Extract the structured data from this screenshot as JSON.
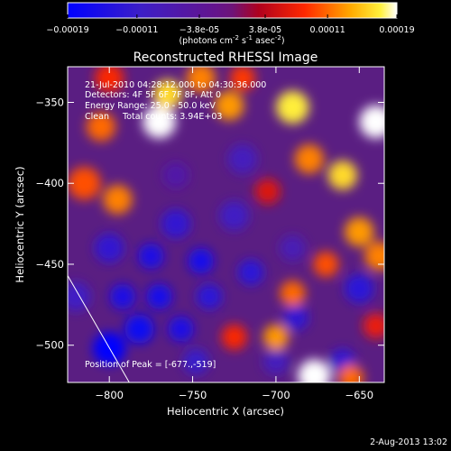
{
  "colorbar": {
    "tick_labels": [
      "-0.00019",
      "-0.00011",
      "-3.8e-05",
      "3.8e-05",
      "0.00011",
      "0.00019"
    ],
    "units_prefix": "(photons cm",
    "units_exp1": "-2",
    "units_mid": " s",
    "units_exp2": "-1",
    "units_mid2": " asec",
    "units_exp3": "-2",
    "units_suffix": ")"
  },
  "chart_data": {
    "type": "heatmap",
    "title": "Reconstructed RHESSI Image",
    "xlabel": "Heliocentric X (arcsec)",
    "ylabel": "Heliocentric Y (arcsec)",
    "xlim": [
      -825,
      -635
    ],
    "ylim": [
      -523,
      -328
    ],
    "xticks": [
      -800,
      -750,
      -700,
      -650
    ],
    "yticks": [
      -350,
      -400,
      -450,
      -500
    ],
    "x_tick_labels": [
      "−800",
      "−750",
      "−700",
      "−650"
    ],
    "y_tick_labels": [
      "−350",
      "−400",
      "−450",
      "−500"
    ],
    "color_range": [
      -0.00019,
      0.00019
    ],
    "annotations": [
      "21-Jul-2010 04:28:12.000 to 04:30:36.000",
      "Detectors: 4F 5F 6F 7F 8F, Att 0",
      "Energy Range: 25.0 - 50.0 keV",
      "Clean     Total counts: 3.94E+03"
    ],
    "peak_label": "Position of Peak = [-677.,-519]",
    "peak": [
      -677,
      -519
    ],
    "limb_line": [
      [
        -825,
        -457
      ],
      [
        -788,
        -523
      ]
    ],
    "blobs": [
      {
        "x": -800,
        "y": -502,
        "v": -0.00019,
        "r": 9
      },
      {
        "x": -782,
        "y": -490,
        "v": -0.00017,
        "r": 8
      },
      {
        "x": -770,
        "y": -470,
        "v": -0.00016,
        "r": 7
      },
      {
        "x": -757,
        "y": -490,
        "v": -0.00015,
        "r": 7
      },
      {
        "x": -792,
        "y": -470,
        "v": -0.00015,
        "r": 7
      },
      {
        "x": -745,
        "y": -448,
        "v": -0.00016,
        "r": 7
      },
      {
        "x": -775,
        "y": -445,
        "v": -0.00015,
        "r": 7
      },
      {
        "x": -760,
        "y": -425,
        "v": -0.00012,
        "r": 8
      },
      {
        "x": -740,
        "y": -470,
        "v": -0.00013,
        "r": 7
      },
      {
        "x": -800,
        "y": -440,
        "v": -0.00012,
        "r": 8
      },
      {
        "x": -725,
        "y": -420,
        "v": -0.0001,
        "r": 8
      },
      {
        "x": -715,
        "y": -455,
        "v": -0.00013,
        "r": 7
      },
      {
        "x": -688,
        "y": -483,
        "v": -0.00012,
        "r": 7
      },
      {
        "x": -650,
        "y": -465,
        "v": -0.00013,
        "r": 8
      },
      {
        "x": -660,
        "y": -510,
        "v": -0.00012,
        "r": 7
      },
      {
        "x": -700,
        "y": -510,
        "v": -9e-05,
        "r": 7
      },
      {
        "x": -720,
        "y": -385,
        "v": -9e-05,
        "r": 8
      },
      {
        "x": -748,
        "y": -510,
        "v": -0.00011,
        "r": 7
      },
      {
        "x": -820,
        "y": -470,
        "v": -0.0001,
        "r": 8
      },
      {
        "x": -690,
        "y": -440,
        "v": -8e-05,
        "r": 7
      },
      {
        "x": -760,
        "y": -395,
        "v": -6e-05,
        "r": 7
      },
      {
        "x": -770,
        "y": -362,
        "v": 0.00019,
        "r": 9
      },
      {
        "x": -765,
        "y": -345,
        "v": 0.00016,
        "r": 8
      },
      {
        "x": -728,
        "y": -352,
        "v": 0.00013,
        "r": 8
      },
      {
        "x": -745,
        "y": -335,
        "v": 0.00012,
        "r": 8
      },
      {
        "x": -805,
        "y": -365,
        "v": 0.00011,
        "r": 8
      },
      {
        "x": -815,
        "y": -400,
        "v": 0.0001,
        "r": 9
      },
      {
        "x": -795,
        "y": -410,
        "v": 0.00012,
        "r": 8
      },
      {
        "x": -690,
        "y": -353,
        "v": 0.00017,
        "r": 9
      },
      {
        "x": -680,
        "y": -385,
        "v": 0.00012,
        "r": 8
      },
      {
        "x": -640,
        "y": -362,
        "v": 0.00019,
        "r": 9
      },
      {
        "x": -660,
        "y": -395,
        "v": 0.00016,
        "r": 8
      },
      {
        "x": -650,
        "y": -430,
        "v": 0.00013,
        "r": 8
      },
      {
        "x": -638,
        "y": -445,
        "v": 0.00012,
        "r": 8
      },
      {
        "x": -670,
        "y": -450,
        "v": 0.0001,
        "r": 7
      },
      {
        "x": -690,
        "y": -468,
        "v": 0.00011,
        "r": 7
      },
      {
        "x": -700,
        "y": -495,
        "v": 0.00013,
        "r": 7
      },
      {
        "x": -677,
        "y": -519,
        "v": 0.00019,
        "r": 9
      },
      {
        "x": -655,
        "y": -520,
        "v": 0.00011,
        "r": 7
      },
      {
        "x": -725,
        "y": -495,
        "v": 8e-05,
        "r": 7
      },
      {
        "x": -800,
        "y": -335,
        "v": 8e-05,
        "r": 8
      },
      {
        "x": -720,
        "y": -335,
        "v": 9e-05,
        "r": 7
      },
      {
        "x": -705,
        "y": -405,
        "v": 6e-05,
        "r": 7
      },
      {
        "x": -640,
        "y": -488,
        "v": 7e-05,
        "r": 7
      }
    ]
  },
  "footer": {
    "date": "2-Aug-2013 13:02"
  }
}
